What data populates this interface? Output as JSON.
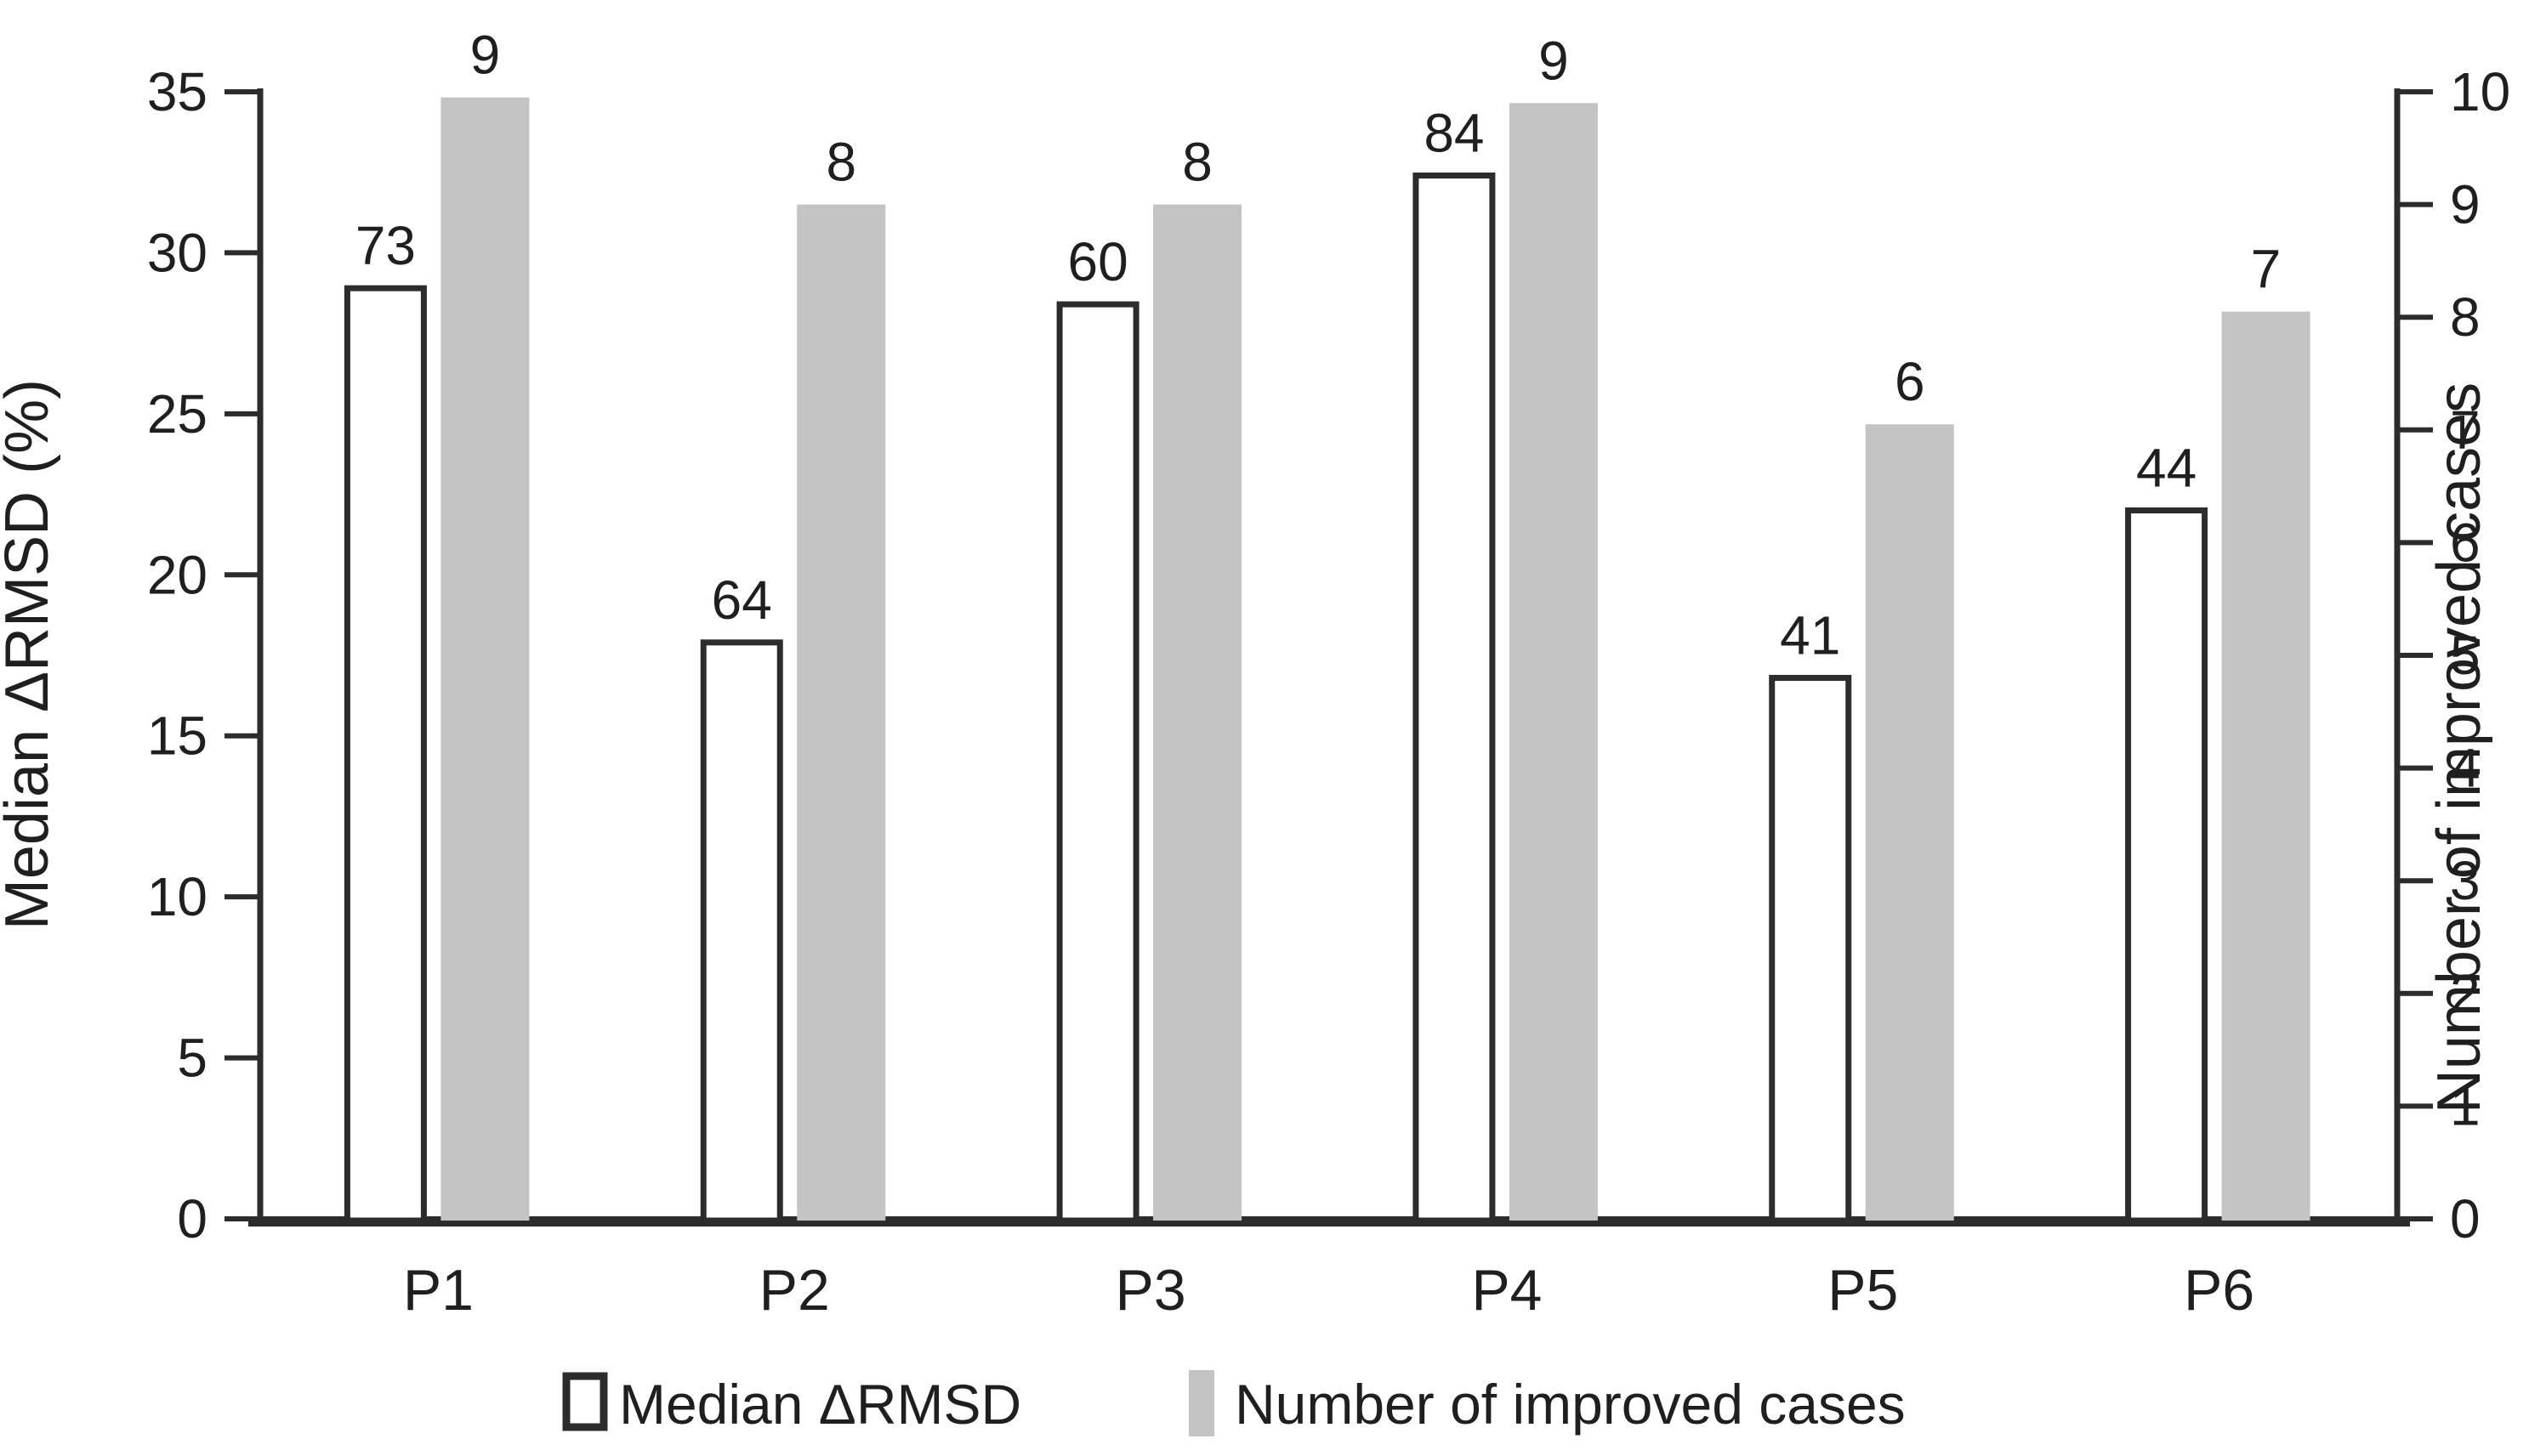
{
  "chart_data": {
    "type": "bar",
    "title": "",
    "categories": [
      "P1",
      "P2",
      "P3",
      "P4",
      "P5",
      "P6"
    ],
    "left_axis": {
      "label": "Median ΔRMSD (%)",
      "min": 0,
      "max": 35,
      "step": 5,
      "tick_labels": [
        "0",
        "5",
        "10",
        "15",
        "20",
        "25",
        "30",
        "35"
      ]
    },
    "right_axis": {
      "label": "Number of improved cases",
      "min": 0,
      "max": 10,
      "step": 1,
      "tick_labels": [
        "0",
        "1",
        "2",
        "3",
        "4",
        "5",
        "6",
        "7",
        "8",
        "9",
        "10"
      ]
    },
    "series": [
      {
        "name": "Median ΔRMSD",
        "axis": "left",
        "style": "white-outlined",
        "data_labels": [
          "73",
          "64",
          "60",
          "84",
          "41",
          "44"
        ],
        "bar_tops_on_axis": [
          28.9,
          17.9,
          28.4,
          32.4,
          16.8,
          22.0
        ]
      },
      {
        "name": "Number of improved cases",
        "axis": "right",
        "style": "gray-filled",
        "data_labels": [
          "9",
          "8",
          "8",
          "9",
          "6",
          "7"
        ],
        "bar_tops_on_axis": [
          9.95,
          9.0,
          9.0,
          9.9,
          7.05,
          8.05
        ]
      }
    ],
    "legend": {
      "position": "bottom"
    },
    "grid": false
  },
  "colors": {
    "background": "#ffffff",
    "gray_bar_fill": "#c4c4c4",
    "white_bar_fill": "#ffffff",
    "bar_outline": "#2c2c2c",
    "axis_line": "#2c2c2c",
    "text": "#1f1f1f"
  }
}
